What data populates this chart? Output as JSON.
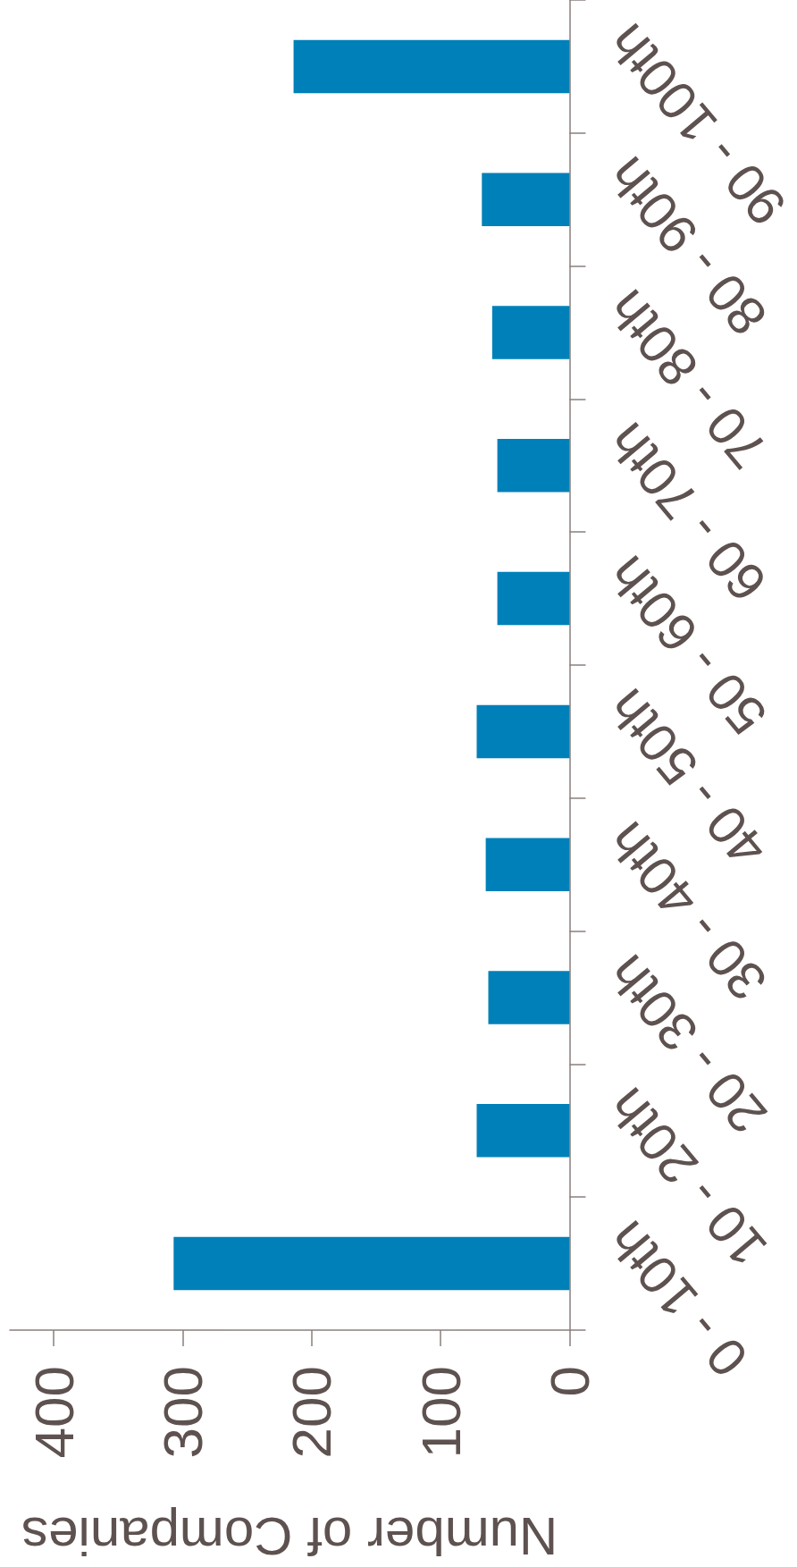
{
  "chart_data": {
    "type": "bar",
    "orientation": "horizontal",
    "xlabel": "Number of Companies",
    "categories": [
      "90 - 100th",
      "80 - 90th",
      "70 - 80th",
      "60 - 70th",
      "50 - 60th",
      "40 - 50th",
      "30 - 40th",
      "20 - 30th",
      "10 - 20th",
      "0 - 10th"
    ],
    "values": [
      214,
      68,
      60,
      56,
      56,
      72,
      65,
      63,
      72,
      307
    ],
    "color": "#0080b8",
    "xlim": [
      434,
      0
    ],
    "xticks": [
      400,
      300,
      200,
      100,
      0
    ],
    "grid": false
  }
}
